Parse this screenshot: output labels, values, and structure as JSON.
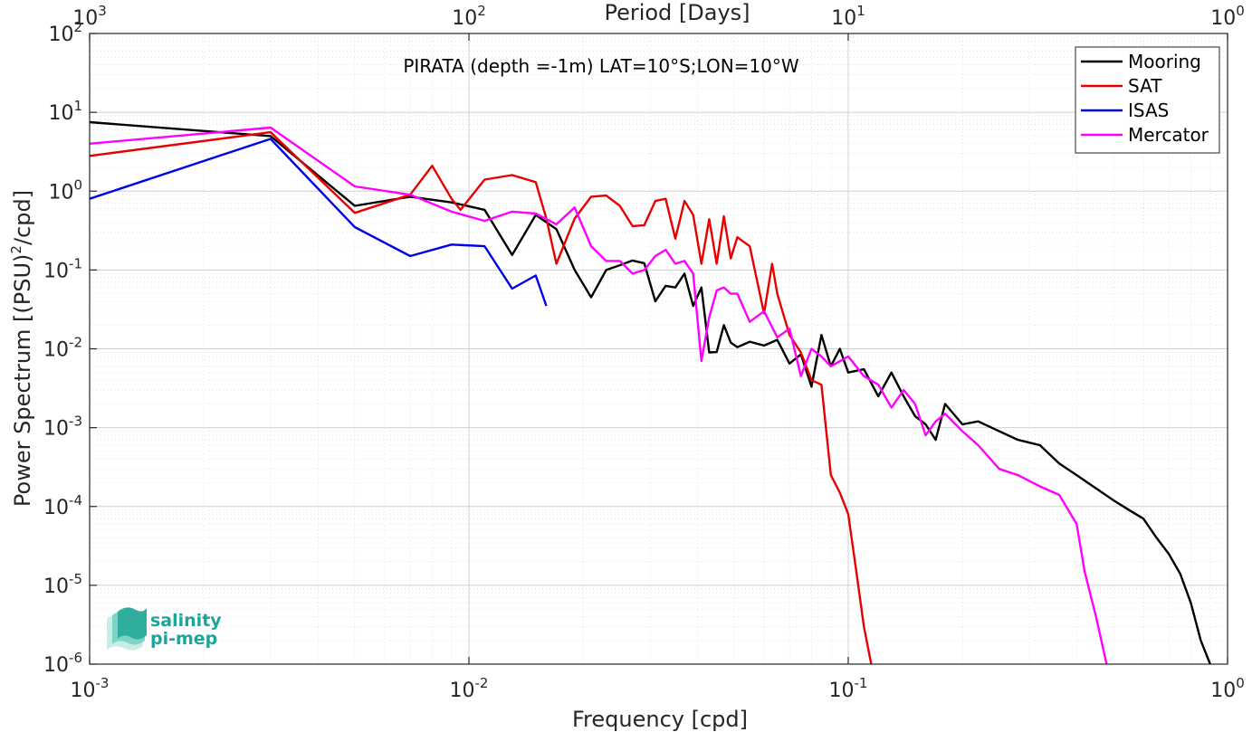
{
  "chart_data": {
    "type": "line",
    "title": "PIRATA (depth =-1m) LAT=10°S;LON=10°W",
    "xlabel": "Frequency [cpd]",
    "ylabel": "Power Spectrum [(PSU)2/cpd]",
    "ylabel_main": "Power Spectrum [(PSU)",
    "ylabel_sup": "2",
    "ylabel_tail": "/cpd]",
    "x2label": "Period [Days]",
    "xscale": "log",
    "yscale": "log",
    "xlim": [
      0.001,
      1
    ],
    "ylim": [
      1e-06,
      100
    ],
    "grid": true,
    "legend_position": "top-right",
    "x_ticks": [
      {
        "value": 0.001,
        "base": "10",
        "exp": "-3"
      },
      {
        "value": 0.01,
        "base": "10",
        "exp": "-2"
      },
      {
        "value": 0.1,
        "base": "10",
        "exp": "-1"
      },
      {
        "value": 1,
        "base": "10",
        "exp": "0"
      }
    ],
    "y_ticks": [
      {
        "value": 1e-06,
        "base": "10",
        "exp": "-6"
      },
      {
        "value": 1e-05,
        "base": "10",
        "exp": "-5"
      },
      {
        "value": 0.0001,
        "base": "10",
        "exp": "-4"
      },
      {
        "value": 0.001,
        "base": "10",
        "exp": "-3"
      },
      {
        "value": 0.01,
        "base": "10",
        "exp": "-2"
      },
      {
        "value": 0.1,
        "base": "10",
        "exp": "-1"
      },
      {
        "value": 1,
        "base": "10",
        "exp": "0"
      },
      {
        "value": 10,
        "base": "10",
        "exp": "1"
      },
      {
        "value": 100,
        "base": "10",
        "exp": "2"
      }
    ],
    "period_ticks": [
      {
        "value": 1000,
        "base": "10",
        "exp": "3"
      },
      {
        "value": 100,
        "base": "10",
        "exp": "2"
      },
      {
        "value": 10,
        "base": "10",
        "exp": "1"
      },
      {
        "value": 1,
        "base": "10",
        "exp": "0"
      }
    ],
    "series": [
      {
        "name": "Mooring",
        "color": "#000000",
        "points": [
          [
            0.001,
            7.5
          ],
          [
            0.003,
            5.0
          ],
          [
            0.005,
            0.65
          ],
          [
            0.007,
            0.85
          ],
          [
            0.009,
            0.72
          ],
          [
            0.011,
            0.58
          ],
          [
            0.013,
            0.155
          ],
          [
            0.015,
            0.5
          ],
          [
            0.017,
            0.33
          ],
          [
            0.019,
            0.1
          ],
          [
            0.021,
            0.045
          ],
          [
            0.023,
            0.1
          ],
          [
            0.025,
            0.115
          ],
          [
            0.027,
            0.132
          ],
          [
            0.029,
            0.122
          ],
          [
            0.031,
            0.04
          ],
          [
            0.033,
            0.063
          ],
          [
            0.035,
            0.06
          ],
          [
            0.037,
            0.09
          ],
          [
            0.039,
            0.035
          ],
          [
            0.041,
            0.06
          ],
          [
            0.043,
            0.009
          ],
          [
            0.045,
            0.0091
          ],
          [
            0.047,
            0.02
          ],
          [
            0.049,
            0.012
          ],
          [
            0.051,
            0.0105
          ],
          [
            0.055,
            0.0123
          ],
          [
            0.06,
            0.011
          ],
          [
            0.065,
            0.013
          ],
          [
            0.07,
            0.0065
          ],
          [
            0.075,
            0.0085
          ],
          [
            0.08,
            0.0033
          ],
          [
            0.085,
            0.015
          ],
          [
            0.09,
            0.006
          ],
          [
            0.095,
            0.01
          ],
          [
            0.1,
            0.005
          ],
          [
            0.11,
            0.0055
          ],
          [
            0.12,
            0.0025
          ],
          [
            0.13,
            0.005
          ],
          [
            0.14,
            0.0025
          ],
          [
            0.15,
            0.0014
          ],
          [
            0.16,
            0.0011
          ],
          [
            0.17,
            0.0007
          ],
          [
            0.18,
            0.002
          ],
          [
            0.2,
            0.0011
          ],
          [
            0.22,
            0.0012
          ],
          [
            0.25,
            0.0009
          ],
          [
            0.28,
            0.0007
          ],
          [
            0.32,
            0.0006
          ],
          [
            0.36,
            0.00035
          ],
          [
            0.4,
            0.00025
          ],
          [
            0.45,
            0.00017
          ],
          [
            0.5,
            0.00012
          ],
          [
            0.55,
            9e-05
          ],
          [
            0.6,
            7e-05
          ],
          [
            0.65,
            4e-05
          ],
          [
            0.7,
            2.5e-05
          ],
          [
            0.75,
            1.4e-05
          ],
          [
            0.8,
            6e-06
          ],
          [
            0.85,
            2e-06
          ],
          [
            0.9,
            1e-06
          ]
        ]
      },
      {
        "name": "SAT",
        "color": "#e60000",
        "points": [
          [
            0.001,
            2.8
          ],
          [
            0.003,
            5.6
          ],
          [
            0.005,
            0.53
          ],
          [
            0.007,
            0.9
          ],
          [
            0.008,
            2.1
          ],
          [
            0.009,
            0.8
          ],
          [
            0.0095,
            0.58
          ],
          [
            0.011,
            1.4
          ],
          [
            0.013,
            1.6
          ],
          [
            0.015,
            1.3
          ],
          [
            0.016,
            0.45
          ],
          [
            0.017,
            0.12
          ],
          [
            0.019,
            0.45
          ],
          [
            0.021,
            0.85
          ],
          [
            0.023,
            0.88
          ],
          [
            0.025,
            0.65
          ],
          [
            0.027,
            0.36
          ],
          [
            0.029,
            0.37
          ],
          [
            0.031,
            0.75
          ],
          [
            0.033,
            0.8
          ],
          [
            0.035,
            0.25
          ],
          [
            0.037,
            0.75
          ],
          [
            0.039,
            0.5
          ],
          [
            0.041,
            0.12
          ],
          [
            0.043,
            0.44
          ],
          [
            0.045,
            0.12
          ],
          [
            0.047,
            0.48
          ],
          [
            0.049,
            0.14
          ],
          [
            0.051,
            0.26
          ],
          [
            0.055,
            0.2
          ],
          [
            0.06,
            0.028
          ],
          [
            0.063,
            0.12
          ],
          [
            0.065,
            0.05
          ],
          [
            0.07,
            0.015
          ],
          [
            0.075,
            0.009
          ],
          [
            0.08,
            0.004
          ],
          [
            0.085,
            0.0035
          ],
          [
            0.09,
            0.00025
          ],
          [
            0.095,
            0.00015
          ],
          [
            0.1,
            8e-05
          ],
          [
            0.105,
            1.5e-05
          ],
          [
            0.11,
            3e-06
          ],
          [
            0.115,
            1e-06
          ]
        ]
      },
      {
        "name": "ISAS",
        "color": "#0000e6",
        "points": [
          [
            0.001,
            0.8
          ],
          [
            0.003,
            4.6
          ],
          [
            0.005,
            0.35
          ],
          [
            0.007,
            0.15
          ],
          [
            0.009,
            0.21
          ],
          [
            0.011,
            0.2
          ],
          [
            0.013,
            0.058
          ],
          [
            0.015,
            0.085
          ],
          [
            0.016,
            0.035
          ]
        ]
      },
      {
        "name": "Mercator",
        "color": "#ff00ff",
        "points": [
          [
            0.001,
            4.0
          ],
          [
            0.003,
            6.4
          ],
          [
            0.005,
            1.15
          ],
          [
            0.007,
            0.9
          ],
          [
            0.009,
            0.55
          ],
          [
            0.011,
            0.42
          ],
          [
            0.013,
            0.55
          ],
          [
            0.015,
            0.52
          ],
          [
            0.017,
            0.38
          ],
          [
            0.019,
            0.62
          ],
          [
            0.021,
            0.2
          ],
          [
            0.023,
            0.13
          ],
          [
            0.025,
            0.13
          ],
          [
            0.027,
            0.09
          ],
          [
            0.029,
            0.1
          ],
          [
            0.031,
            0.15
          ],
          [
            0.033,
            0.18
          ],
          [
            0.035,
            0.12
          ],
          [
            0.037,
            0.13
          ],
          [
            0.039,
            0.09
          ],
          [
            0.041,
            0.007
          ],
          [
            0.043,
            0.025
          ],
          [
            0.045,
            0.055
          ],
          [
            0.047,
            0.06
          ],
          [
            0.049,
            0.05
          ],
          [
            0.051,
            0.05
          ],
          [
            0.055,
            0.022
          ],
          [
            0.06,
            0.03
          ],
          [
            0.065,
            0.014
          ],
          [
            0.07,
            0.018
          ],
          [
            0.075,
            0.0045
          ],
          [
            0.08,
            0.01
          ],
          [
            0.085,
            0.008
          ],
          [
            0.09,
            0.006
          ],
          [
            0.1,
            0.008
          ],
          [
            0.11,
            0.0045
          ],
          [
            0.12,
            0.0035
          ],
          [
            0.13,
            0.0018
          ],
          [
            0.14,
            0.003
          ],
          [
            0.15,
            0.002
          ],
          [
            0.16,
            0.0008
          ],
          [
            0.17,
            0.0012
          ],
          [
            0.18,
            0.0015
          ],
          [
            0.2,
            0.0009
          ],
          [
            0.22,
            0.0006
          ],
          [
            0.25,
            0.0003
          ],
          [
            0.28,
            0.00025
          ],
          [
            0.32,
            0.00018
          ],
          [
            0.36,
            0.00014
          ],
          [
            0.4,
            6e-05
          ],
          [
            0.42,
            1.5e-05
          ],
          [
            0.45,
            4e-06
          ],
          [
            0.48,
            1e-06
          ]
        ]
      }
    ]
  },
  "logo": {
    "line1": "salinity",
    "line2": "pi-mep"
  }
}
